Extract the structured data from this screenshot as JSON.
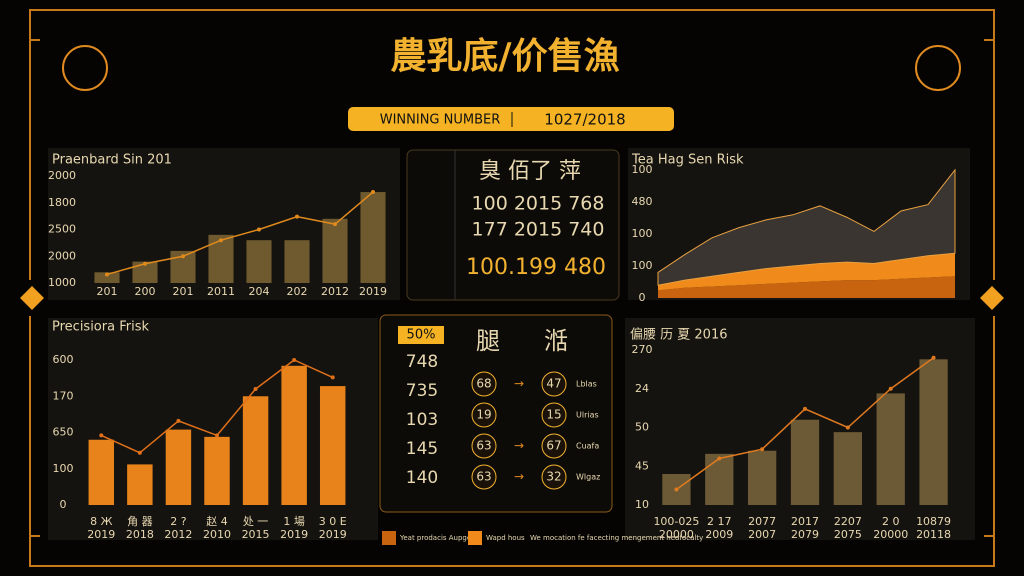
{
  "header": {
    "title": "農乳底/价售漁",
    "badge_left": "WINNING NUMBER",
    "badge_right": "1027/2018"
  },
  "chart_data": [
    {
      "type": "bar",
      "title": "Praenbard Sin 201",
      "y_labels": [
        "2000",
        "1800",
        "2500",
        "2000",
        "1000"
      ],
      "ylim": [
        0,
        100
      ],
      "categories": [
        "201",
        "200",
        "201",
        "2011",
        "204",
        "202",
        "2012",
        "2019"
      ],
      "series": [
        {
          "type": "bar",
          "color": "#6e5a2e",
          "values": [
            10,
            20,
            30,
            45,
            40,
            40,
            60,
            85
          ]
        },
        {
          "type": "line",
          "color": "#e08a1e",
          "values": [
            8,
            18,
            25,
            40,
            50,
            62,
            55,
            85
          ]
        }
      ]
    },
    {
      "type": "area",
      "title": "Tea Hag Sen Risk",
      "y_labels": [
        "100",
        "480",
        "100",
        "100",
        "0"
      ],
      "ylim": [
        0,
        100
      ],
      "categories": [
        null,
        null,
        null,
        null,
        null,
        null,
        null,
        null,
        null,
        null,
        null,
        null
      ],
      "series": [
        {
          "color": "#c8640f",
          "values": [
            6,
            8,
            9,
            10,
            11,
            12,
            13,
            14,
            14,
            15,
            16,
            17
          ]
        },
        {
          "color": "#f08a1a",
          "values": [
            4,
            6,
            8,
            10,
            12,
            13,
            14,
            14,
            13,
            15,
            17,
            18
          ]
        },
        {
          "color": "#3a3530",
          "values": [
            10,
            20,
            30,
            35,
            38,
            40,
            45,
            35,
            25,
            38,
            40,
            65
          ]
        }
      ]
    },
    {
      "type": "bar",
      "title": "Precisiora Frisk",
      "y_labels": [
        "600",
        "170",
        "650",
        "100",
        "0"
      ],
      "ylim": [
        0,
        100
      ],
      "categories": [
        [
          "8 Ж",
          "2019"
        ],
        [
          "角 器",
          "2018"
        ],
        [
          "2 ?",
          "2012"
        ],
        [
          "赵 4",
          "2010"
        ],
        [
          "处 一",
          "2015"
        ],
        [
          "1 場",
          "2019"
        ],
        [
          "3 0 E",
          "2019"
        ]
      ],
      "series": [
        {
          "type": "bar",
          "color": "#e8821a",
          "values": [
            45,
            28,
            52,
            47,
            75,
            96,
            82
          ]
        },
        {
          "type": "line",
          "color": "#e0701a",
          "values": [
            48,
            36,
            58,
            48,
            80,
            100,
            88
          ]
        }
      ]
    },
    {
      "type": "bar",
      "title": "偏腰 历 夏 2016",
      "y_labels": [
        "270",
        "24",
        "50",
        "45",
        "10"
      ],
      "ylim": [
        0,
        100
      ],
      "categories": [
        [
          "100-025",
          "20000"
        ],
        [
          "2 17",
          "2009"
        ],
        [
          "2077",
          "2007"
        ],
        [
          "2017",
          "2079"
        ],
        [
          "2207",
          "2075"
        ],
        [
          "2 0",
          "20000"
        ],
        [
          "10879",
          "20118"
        ]
      ],
      "series": [
        {
          "type": "bar",
          "color": "#6b5a35",
          "values": [
            20,
            33,
            35,
            55,
            47,
            72,
            94
          ]
        },
        {
          "type": "line",
          "color": "#e07a20",
          "values": [
            10,
            30,
            36,
            62,
            50,
            75,
            95
          ]
        }
      ]
    }
  ],
  "center_top": {
    "header": "臭 佰了 萍",
    "rows": [
      "100 2015 768",
      "177 2015 740"
    ],
    "total": "100.199 480"
  },
  "center_bottom": {
    "badge": "50%",
    "col_a": "腿",
    "col_b": "湉",
    "numbers": [
      "748",
      "735",
      "103",
      "145",
      "140"
    ],
    "left_circles": [
      "68",
      "19",
      "63",
      "63"
    ],
    "right_circles": [
      "47",
      "15",
      "67",
      "32"
    ],
    "notes": [
      "Lblas",
      "Ulrias",
      "Cuafa",
      "Wlgaz"
    ]
  },
  "legend_notes": [
    "Yeat prodacis Aupgey",
    "Wapd hous",
    "We mocation fe facecting mengement hedfocalty"
  ]
}
